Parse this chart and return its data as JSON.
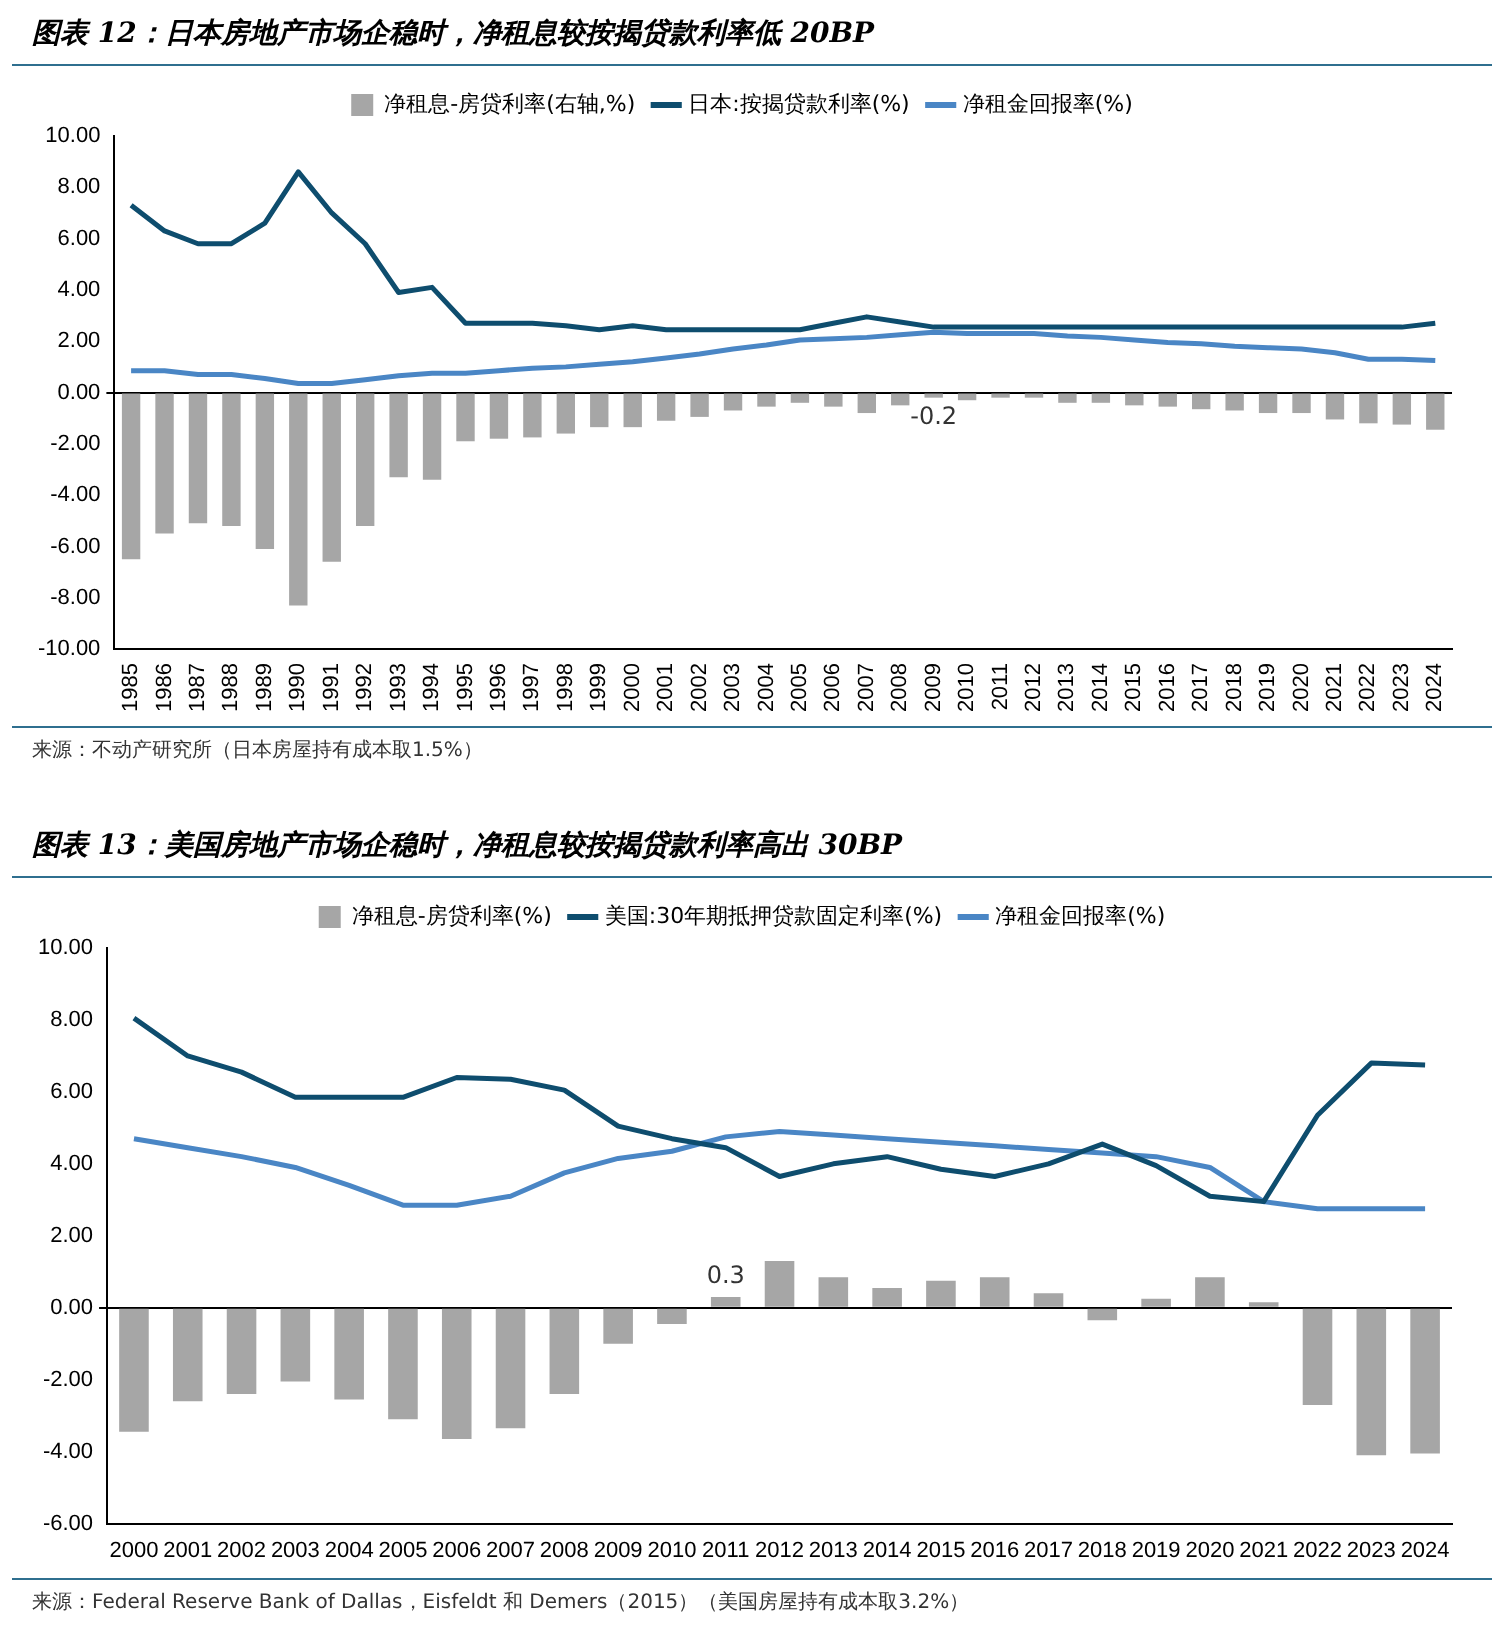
{
  "chart_data": [
    {
      "type": "line",
      "title": "图表 12：日本房地产市场企稳时，净租息较按揭贷款利率低 20BP",
      "categories": [
        "1985",
        "1986",
        "1987",
        "1988",
        "1989",
        "1990",
        "1991",
        "1992",
        "1993",
        "1994",
        "1995",
        "1996",
        "1997",
        "1998",
        "1999",
        "2000",
        "2001",
        "2002",
        "2003",
        "2004",
        "2005",
        "2006",
        "2007",
        "2008",
        "2009",
        "2010",
        "2011",
        "2012",
        "2013",
        "2014",
        "2015",
        "2016",
        "2017",
        "2018",
        "2019",
        "2020",
        "2021",
        "2022",
        "2023",
        "2024"
      ],
      "series": [
        {
          "type": "bar",
          "name": "净租息-房贷利率(右轴,%)",
          "color": "#a6a6a6",
          "values": [
            -6.5,
            -5.5,
            -5.1,
            -5.2,
            -6.1,
            -8.3,
            -6.6,
            -5.2,
            -3.3,
            -3.4,
            -1.9,
            -1.8,
            -1.75,
            -1.6,
            -1.35,
            -1.35,
            -1.1,
            -0.95,
            -0.7,
            -0.55,
            -0.4,
            -0.55,
            -0.8,
            -0.5,
            -0.2,
            -0.3,
            -0.2,
            -0.2,
            -0.4,
            -0.4,
            -0.5,
            -0.55,
            -0.65,
            -0.7,
            -0.8,
            -0.8,
            -1.05,
            -1.2,
            -1.25,
            -1.45
          ],
          "value_labels": [
            null,
            null,
            null,
            null,
            null,
            null,
            null,
            null,
            null,
            null,
            null,
            null,
            null,
            null,
            null,
            null,
            null,
            null,
            null,
            null,
            null,
            null,
            null,
            null,
            "-0.2",
            null,
            null,
            null,
            null,
            null,
            null,
            null,
            null,
            null,
            null,
            null,
            null,
            null,
            null,
            null
          ]
        },
        {
          "name": "日本:按揭贷款利率(%)",
          "color": "#0e4d6e",
          "values": [
            7.3,
            6.3,
            5.8,
            5.8,
            6.6,
            8.6,
            7.0,
            5.8,
            3.9,
            4.1,
            2.7,
            2.7,
            2.7,
            2.6,
            2.45,
            2.6,
            2.45,
            2.45,
            2.45,
            2.45,
            2.45,
            2.7,
            2.95,
            2.75,
            2.55,
            2.55,
            2.55,
            2.55,
            2.55,
            2.55,
            2.55,
            2.55,
            2.55,
            2.55,
            2.55,
            2.55,
            2.55,
            2.55,
            2.55,
            2.7
          ]
        },
        {
          "name": "净租金回报率(%)",
          "color": "#4a86c5",
          "values": [
            0.85,
            0.85,
            0.7,
            0.7,
            0.55,
            0.35,
            0.35,
            0.5,
            0.65,
            0.75,
            0.75,
            0.85,
            0.95,
            1.0,
            1.1,
            1.2,
            1.35,
            1.5,
            1.7,
            1.85,
            2.05,
            2.1,
            2.15,
            2.25,
            2.35,
            2.3,
            2.3,
            2.3,
            2.2,
            2.15,
            2.05,
            1.95,
            1.9,
            1.8,
            1.75,
            1.7,
            1.55,
            1.3,
            1.3,
            1.25
          ]
        }
      ],
      "ylim": [
        -10,
        10
      ],
      "yticks": [
        {
          "value": -10,
          "label": "-10.00"
        },
        {
          "value": -8,
          "label": "-8.00"
        },
        {
          "value": -6,
          "label": "-6.00"
        },
        {
          "value": -4,
          "label": "-4.00"
        },
        {
          "value": -2,
          "label": "-2.00"
        },
        {
          "value": 0,
          "label": "0.00"
        },
        {
          "value": 2,
          "label": "2.00"
        },
        {
          "value": 4,
          "label": "4.00"
        },
        {
          "value": 6,
          "label": "6.00"
        },
        {
          "value": 8,
          "label": "8.00"
        },
        {
          "value": 10,
          "label": "10.00"
        }
      ],
      "legend": "top",
      "annotations": [
        "来源：不动产研究所（日本房屋持有成本取1.5%）"
      ]
    },
    {
      "type": "line",
      "title": "图表 13：美国房地产市场企稳时，净租息较按揭贷款利率高出 30BP",
      "categories": [
        "2000",
        "2001",
        "2002",
        "2003",
        "2004",
        "2005",
        "2006",
        "2007",
        "2008",
        "2009",
        "2010",
        "2011",
        "2012",
        "2013",
        "2014",
        "2015",
        "2016",
        "2017",
        "2018",
        "2019",
        "2020",
        "2021",
        "2022",
        "2023",
        "2024"
      ],
      "series": [
        {
          "type": "bar",
          "name": "净租息-房贷利率(%)",
          "color": "#a6a6a6",
          "values": [
            -3.45,
            -2.6,
            -2.4,
            -2.05,
            -2.55,
            -3.1,
            -3.65,
            -3.35,
            -2.4,
            -1.0,
            -0.45,
            0.3,
            1.3,
            0.85,
            0.55,
            0.75,
            0.85,
            0.4,
            -0.35,
            0.25,
            0.85,
            0.15,
            -2.7,
            -4.1,
            -4.05
          ],
          "value_labels": [
            null,
            null,
            null,
            null,
            null,
            null,
            null,
            null,
            null,
            null,
            null,
            "0.3",
            null,
            null,
            null,
            null,
            null,
            null,
            null,
            null,
            null,
            null,
            null,
            null,
            null
          ]
        },
        {
          "name": "美国:30年期抵押贷款固定利率(%)",
          "color": "#0e4d6e",
          "values": [
            8.05,
            7.0,
            6.55,
            5.85,
            5.85,
            5.85,
            6.4,
            6.35,
            6.05,
            5.05,
            4.7,
            4.45,
            3.65,
            4.0,
            4.2,
            3.85,
            3.65,
            4.0,
            4.55,
            3.95,
            3.1,
            2.95,
            5.35,
            6.8,
            6.75
          ]
        },
        {
          "name": "净租金回报率(%)",
          "color": "#4a86c5",
          "values": [
            4.7,
            4.45,
            4.2,
            3.9,
            3.4,
            2.85,
            2.85,
            3.1,
            3.75,
            4.15,
            4.35,
            4.75,
            4.9,
            4.8,
            4.7,
            4.6,
            4.5,
            4.4,
            4.3,
            4.2,
            3.9,
            2.95,
            2.75,
            2.75,
            2.75
          ]
        }
      ],
      "ylim": [
        -6,
        10
      ],
      "yticks": [
        {
          "value": -6,
          "label": "-6.00"
        },
        {
          "value": -4,
          "label": "-4.00"
        },
        {
          "value": -2,
          "label": "-2.00"
        },
        {
          "value": 0,
          "label": "0.00"
        },
        {
          "value": 2,
          "label": "2.00"
        },
        {
          "value": 4,
          "label": "4.00"
        },
        {
          "value": 6,
          "label": "6.00"
        },
        {
          "value": 8,
          "label": "8.00"
        },
        {
          "value": 10,
          "label": "10.00"
        }
      ],
      "legend": "top",
      "annotations": [
        "来源：Federal Reserve Bank of Dallas，Eisfeldt 和 Demers（2015）（美国房屋持有成本取3.2%）"
      ]
    }
  ]
}
